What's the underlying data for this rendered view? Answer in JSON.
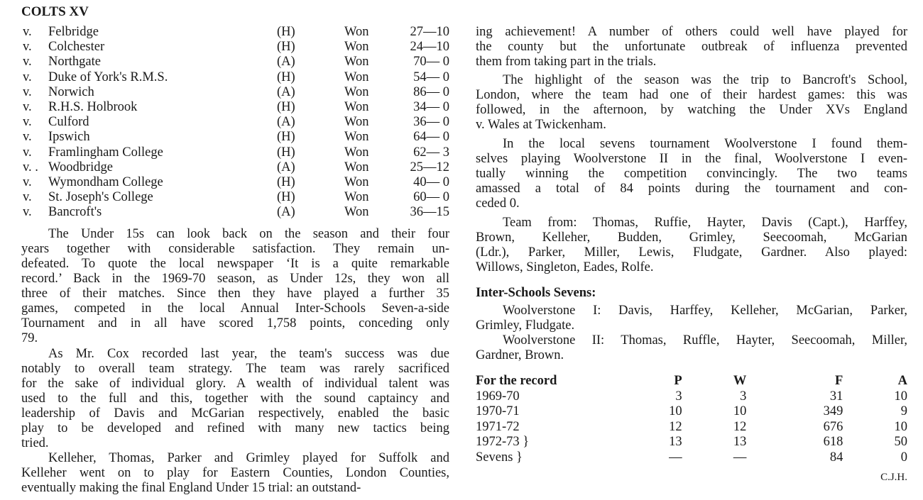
{
  "left": {
    "title": "COLTS XV",
    "fixtures": [
      {
        "v": "v.",
        "opponent": "Felbridge",
        "venue": "(H)",
        "result": "Won",
        "score": "27—10"
      },
      {
        "v": "v.",
        "opponent": "Colchester",
        "venue": "(H)",
        "result": "Won",
        "score": "24—10"
      },
      {
        "v": "v.",
        "opponent": "Northgate",
        "venue": "(A)",
        "result": "Won",
        "score": "70— 0"
      },
      {
        "v": "v.",
        "opponent": "Duke of York's R.M.S.",
        "venue": "(H)",
        "result": "Won",
        "score": "54— 0"
      },
      {
        "v": "v.",
        "opponent": "Norwich",
        "venue": "(A)",
        "result": "Won",
        "score": "86— 0"
      },
      {
        "v": "v.",
        "opponent": "R.H.S. Holbrook",
        "venue": "(H)",
        "result": "Won",
        "score": "34— 0"
      },
      {
        "v": "v.",
        "opponent": "Culford",
        "venue": "(A)",
        "result": "Won",
        "score": "36— 0"
      },
      {
        "v": "v.",
        "opponent": "Ipswich",
        "venue": "(H)",
        "result": "Won",
        "score": "64— 0"
      },
      {
        "v": "v.",
        "opponent": "Framlingham College",
        "venue": "(H)",
        "result": "Won",
        "score": "62— 3"
      },
      {
        "v": "v. .",
        "opponent": "Woodbridge",
        "venue": "(A)",
        "result": "Won",
        "score": "25—12"
      },
      {
        "v": "v.",
        "opponent": "Wymondham College",
        "venue": "(H)",
        "result": "Won",
        "score": "40— 0"
      },
      {
        "v": "v.",
        "opponent": "St. Joseph's College",
        "venue": "(H)",
        "result": "Won",
        "score": "60— 0"
      },
      {
        "v": "v.",
        "opponent": "Bancroft's",
        "venue": "(A)",
        "result": "Won",
        "score": "36—15"
      }
    ],
    "paragraphs": [
      [
        "The Under 15s can look back on the season and their four",
        "years together with considerable satisfaction. They remain un-",
        "defeated. To quote the local newspaper ‘It is a quite remarkable",
        "record.’ Back in the 1969-70 season, as Under 12s, they won all",
        "three of their matches. Since then they have played a further 35",
        "games, competed in the local Annual Inter-Schools Seven-a-side",
        "Tournament and in all have scored 1,758 points, conceding only",
        "79."
      ],
      [
        "As Mr. Cox recorded last year, the team's success was due",
        "notably to overall team strategy. The team was rarely sacrificed",
        "for the sake of individual glory. A wealth of individual talent was",
        "used to the full and this, together with the sound captaincy and",
        "leadership of Davis and McGarian respectively, enabled the basic",
        "play to be developed and refined with many new tactics being",
        "tried."
      ],
      [
        "Kelleher, Thomas, Parker and Grimley played for Suffolk and",
        "Kelleher went on to play for Eastern Counties, London Counties,",
        "eventually making the final England Under 15 trial: an outstand-"
      ]
    ]
  },
  "right": {
    "paragraphs": [
      [
        "ing achievement! A number of others could well have played for",
        "the county but the unfortunate outbreak of influenza prevented",
        "them from taking part in the trials."
      ],
      [
        "The highlight of the season was the trip to Bancroft's School,",
        "London, where the team had one of their hardest games: this was",
        "followed, in the afternoon, by watching the Under XVs England",
        "v. Wales at Twickenham."
      ],
      [
        "In the local sevens tournament Woolverstone I found them-",
        "selves playing Woolverstone II in the final, Woolverstone I even-",
        "tually winning the competition convincingly. The two teams",
        "amassed a total of 84 points during the tournament and con-",
        "ceded 0."
      ],
      [
        "Team from: Thomas, Ruffie, Hayter, Davis (Capt.), Harffey,",
        "Brown, Kelleher, Budden, Grimley, Seecoomah, McGarian",
        "(Ldr.), Parker, Miller, Lewis, Fludgate, Gardner. Also played:",
        "Willows, Singleton, Eades, Rolfe."
      ]
    ],
    "sevens_heading": "Inter-Schools Sevens:",
    "sevens": [
      [
        "Woolverstone I: Davis, Harffey, Kelleher, McGarian, Parker,",
        "Grimley, Fludgate."
      ],
      [
        "Woolverstone II: Thomas, Ruffle, Hayter, Seecoomah, Miller,",
        "Gardner, Brown."
      ]
    ],
    "record": {
      "headers": [
        "For the record",
        "P",
        "W",
        "F",
        "A"
      ],
      "rows": [
        [
          "1969-70",
          "3",
          "3",
          "31",
          "10"
        ],
        [
          "1970-71",
          "10",
          "10",
          "349",
          "9"
        ],
        [
          "1971-72",
          "12",
          "12",
          "676",
          "10"
        ],
        [
          "1972-73   }",
          "13",
          "13",
          "618",
          "50"
        ],
        [
          "Sevens   }",
          "—",
          "—",
          "84",
          "0"
        ]
      ]
    },
    "signature": "C.J.H."
  }
}
